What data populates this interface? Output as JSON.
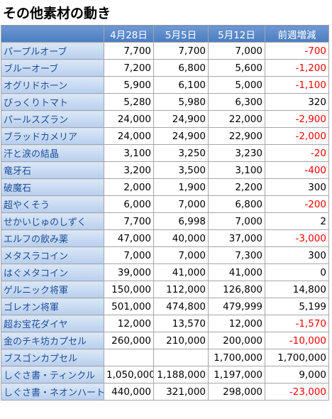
{
  "title": "その他素材の動き",
  "table": {
    "header": [
      "4月28日",
      "5月5日",
      "5月12日",
      "前週増減"
    ],
    "rows": [
      [
        "パープルオーブ",
        "7,700",
        "7,700",
        "7,000",
        "-700"
      ],
      [
        "ブルーオーブ",
        "7,200",
        "6,800",
        "5,600",
        "-1,200"
      ],
      [
        "オグリドホーン",
        "5,900",
        "6,100",
        "5,000",
        "-1,100"
      ],
      [
        "びっくりトマト",
        "5,280",
        "5,980",
        "6,300",
        "320"
      ],
      [
        "パールスズラン",
        "24,000",
        "24,900",
        "22,000",
        "-2,900"
      ],
      [
        "ブラッドカメリア",
        "24,000",
        "24,900",
        "22,900",
        "-2,000"
      ],
      [
        "汗と涙の結晶",
        "3,100",
        "3,250",
        "3,230",
        "-20"
      ],
      [
        "竜牙石",
        "3,200",
        "3,500",
        "3,100",
        "-400"
      ],
      [
        "破魔石",
        "2,000",
        "1,900",
        "2,200",
        "300"
      ],
      [
        "超やくそう",
        "6,000",
        "7,000",
        "6,800",
        "-200"
      ],
      [
        "せかいじゅのしずく",
        "7,700",
        "6,998",
        "7,000",
        "2"
      ],
      [
        "エルフの飲み薬",
        "47,000",
        "40,000",
        "37,000",
        "-3,000"
      ],
      [
        "メタスラコイン",
        "7,000",
        "7,000",
        "7,300",
        "300"
      ],
      [
        "はぐメタコイン",
        "39,000",
        "41,000",
        "41,000",
        "0"
      ],
      [
        "ゲルニック将軍",
        "150,000",
        "112,000",
        "126,800",
        "14,800"
      ],
      [
        "ゴレオン将軍",
        "501,000",
        "474,800",
        "479,999",
        "5,199"
      ],
      [
        "超お宝花ダイヤ",
        "12,000",
        "13,570",
        "12,000",
        "-1,570"
      ],
      [
        "金のチキ坊カプセル",
        "260,000",
        "210,000",
        "200,000",
        "-10,000"
      ],
      [
        "ブスゴンカプセル",
        null,
        null,
        "1,700,000",
        "1,700,000"
      ],
      [
        "しぐさ書・ティンクル",
        "1,050,000",
        "1,188,000",
        "1,197,000",
        "9,000"
      ],
      [
        "しぐさ書・ネオンハート",
        "440,000",
        "321,000",
        "298,000",
        "-23,000"
      ]
    ]
  }
}
